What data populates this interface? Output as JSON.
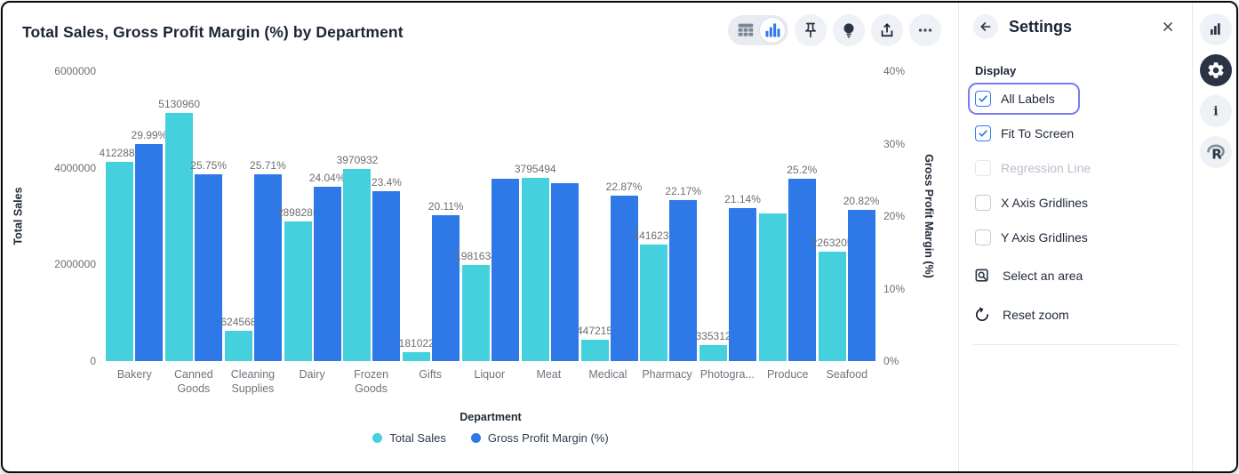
{
  "header": {
    "title": "Total Sales, Gross Profit Margin (%) by Department",
    "toolbar": {
      "view_toggle": {
        "options": [
          "table-view",
          "chart-view"
        ],
        "active": "chart-view"
      },
      "buttons": [
        "pin",
        "insights-bulb",
        "share",
        "more"
      ]
    }
  },
  "chart_data": {
    "type": "bar",
    "title": "Total Sales, Gross Profit Margin (%) by Department",
    "categories": [
      "Bakery",
      "Canned Goods",
      "Cleaning Supplies",
      "Dairy",
      "Frozen Goods",
      "Gifts",
      "Liquor",
      "Meat",
      "Medical",
      "Pharmacy",
      "Photogra...",
      "Produce",
      "Seafood"
    ],
    "series": [
      {
        "name": "Total Sales",
        "axis": "left",
        "color": "#45d0de",
        "values": [
          4122881,
          5130960,
          624568,
          2898285,
          3970932,
          181022,
          1981634,
          3795494,
          447215,
          2416230,
          335312,
          3060000,
          2263205
        ],
        "labels": [
          "4122881",
          "5130960",
          "624568",
          "2898285",
          "3970932",
          "181022",
          "1981634",
          "3795494",
          "447215",
          "2416230",
          "335312",
          "",
          "2263205"
        ]
      },
      {
        "name": "Gross Profit Margin (%)",
        "axis": "right",
        "color": "#2e78e8",
        "values": [
          29.99,
          25.75,
          25.71,
          24.04,
          23.4,
          20.11,
          25.1,
          24.5,
          22.87,
          22.17,
          21.14,
          25.2,
          20.82
        ],
        "labels": [
          "29.99%",
          "25.75%",
          "25.71%",
          "24.04%",
          "23.4%",
          "20.11%",
          "",
          "",
          "22.87%",
          "22.17%",
          "21.14%",
          "25.2%",
          "20.82%"
        ]
      }
    ],
    "left_axis": {
      "label": "Total Sales",
      "ticks": [
        "0",
        "2000000",
        "4000000",
        "6000000"
      ],
      "min": 0,
      "max": 6000000
    },
    "right_axis": {
      "label": "Gross Profit Margin (%)",
      "ticks": [
        "0%",
        "10%",
        "20%",
        "30%",
        "40%"
      ],
      "min": 0,
      "max": 40
    },
    "xlabel": "Department",
    "gridlines": false,
    "legend_position": "bottom",
    "legend": [
      {
        "label": "Total Sales",
        "color": "#45d0de"
      },
      {
        "label": "Gross Profit Margin (%)",
        "color": "#2e78e8"
      }
    ]
  },
  "settings": {
    "title": "Settings",
    "section_label": "Display",
    "checkboxes": [
      {
        "label": "All Labels",
        "checked": true,
        "disabled": false,
        "focused": true
      },
      {
        "label": "Fit To Screen",
        "checked": true,
        "disabled": false,
        "focused": false
      },
      {
        "label": "Regression Line",
        "checked": false,
        "disabled": true,
        "focused": false
      },
      {
        "label": "X Axis Gridlines",
        "checked": false,
        "disabled": false,
        "focused": false
      },
      {
        "label": "Y Axis Gridlines",
        "checked": false,
        "disabled": false,
        "focused": false
      }
    ],
    "actions": [
      {
        "label": "Select an area",
        "icon": "select-area-icon"
      },
      {
        "label": "Reset zoom",
        "icon": "reset-zoom-icon"
      }
    ]
  },
  "rail": {
    "buttons": [
      {
        "icon": "bar-chart-icon",
        "active": false
      },
      {
        "icon": "gear-icon",
        "active": true
      },
      {
        "icon": "info-icon",
        "active": false
      },
      {
        "icon": "r-logo-icon",
        "active": false
      }
    ]
  },
  "colors": {
    "sales": "#45d0de",
    "gpm": "#2e78e8",
    "focus_ring": "#7b7af2",
    "checkbox_blue": "#2d7ff0"
  }
}
